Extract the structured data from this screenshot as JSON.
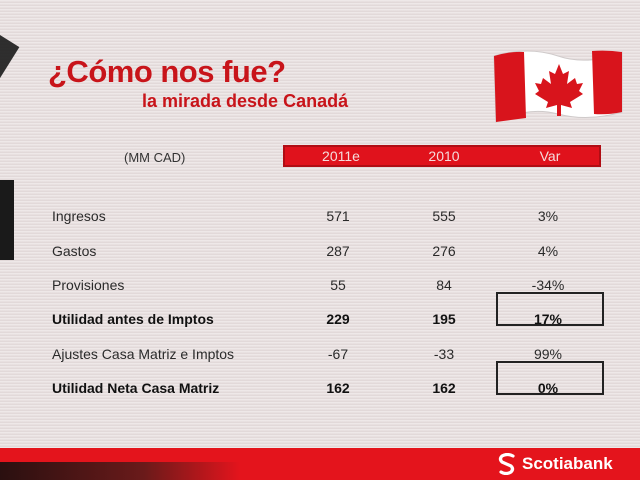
{
  "slide": {
    "title": "¿Cómo nos fue?",
    "subtitle": "la mirada desde Canadá"
  },
  "table": {
    "unit_label": "(MM CAD)",
    "headers": [
      "2011e",
      "2010",
      "Var"
    ],
    "rows": [
      {
        "label": "Ingresos",
        "v2011": "571",
        "v2010": "555",
        "var": "3%",
        "bold": false,
        "boxed": false
      },
      {
        "label": "Gastos",
        "v2011": "287",
        "v2010": "276",
        "var": "4%",
        "bold": false,
        "boxed": false
      },
      {
        "label": "Provisiones",
        "v2011": "55",
        "v2010": "84",
        "var": "-34%",
        "bold": false,
        "boxed": false
      },
      {
        "label": "Utilidad antes de Imptos",
        "v2011": "229",
        "v2010": "195",
        "var": "17%",
        "bold": true,
        "boxed": true
      },
      {
        "label": "Ajustes Casa Matriz e Imptos",
        "v2011": "-67",
        "v2010": "-33",
        "var": "99%",
        "bold": false,
        "boxed": false
      },
      {
        "label": "Utilidad Neta Casa Matriz",
        "v2011": "162",
        "v2010": "162",
        "var": "0%",
        "bold": true,
        "boxed": true
      }
    ]
  },
  "footer": {
    "brand_name": "Scotiabank",
    "brand_icon": "scotiabank-s-logo"
  },
  "decor": {
    "flag_icon": "canada-flag",
    "accent_color": "#e0121c"
  }
}
